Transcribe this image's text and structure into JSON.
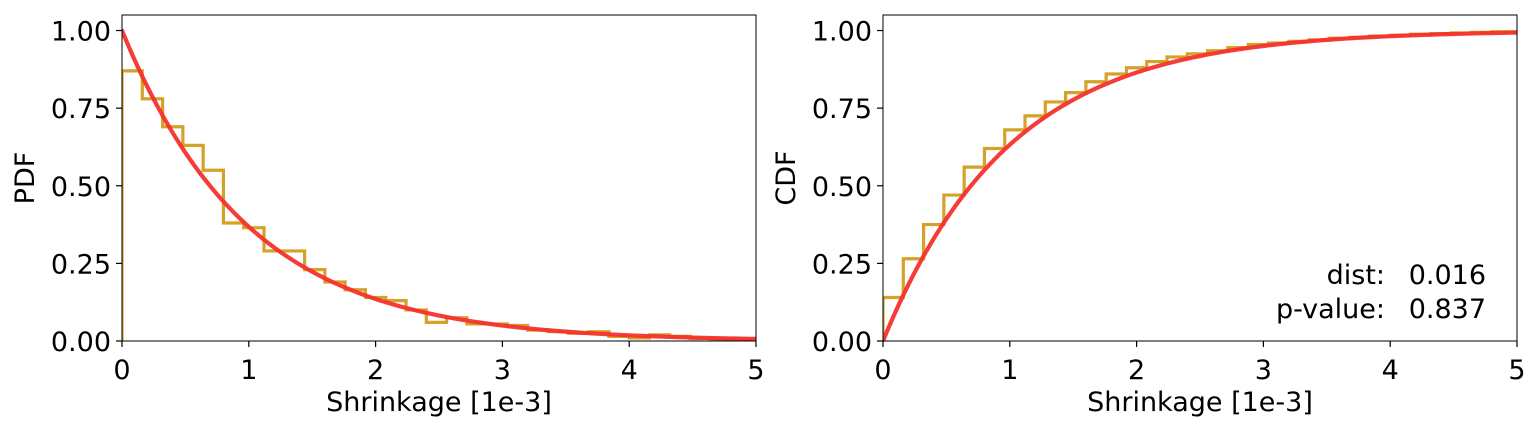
{
  "chart_data": [
    {
      "type": "line",
      "xlabel": "Shrinkage [1e-3]",
      "ylabel": "PDF",
      "xlim": [
        0,
        5
      ],
      "ylim": [
        0,
        1.05
      ],
      "xticks": [
        "0",
        "1",
        "2",
        "3",
        "4",
        "5"
      ],
      "yticks": [
        "0.00",
        "0.25",
        "0.50",
        "0.75",
        "1.00"
      ],
      "grid": false,
      "series": [
        {
          "kind": "step-histogram",
          "color": "#D4A227",
          "bin_edges": [
            0,
            0.16,
            0.32,
            0.48,
            0.64,
            0.8,
            0.96,
            1.12,
            1.28,
            1.44,
            1.6,
            1.76,
            1.92,
            2.08,
            2.24,
            2.4,
            2.56,
            2.72,
            2.88,
            3.04,
            3.2,
            3.36,
            3.52,
            3.68,
            3.84,
            4.0,
            4.16,
            4.32,
            4.48,
            4.64,
            4.8,
            5.0
          ],
          "values": [
            0.87,
            0.78,
            0.69,
            0.63,
            0.55,
            0.38,
            0.365,
            0.29,
            0.29,
            0.23,
            0.19,
            0.165,
            0.14,
            0.13,
            0.1,
            0.06,
            0.075,
            0.055,
            0.055,
            0.05,
            0.035,
            0.03,
            0.025,
            0.03,
            0.015,
            0.01,
            0.02,
            0.015,
            0.008,
            0.006,
            0.004
          ]
        },
        {
          "kind": "curve",
          "color": "#F5312D",
          "function": "exponential-pdf",
          "rate": 1.0,
          "x": [
            0,
            0.25,
            0.5,
            0.75,
            1,
            1.5,
            2,
            2.5,
            3,
            3.5,
            4,
            4.5,
            5
          ],
          "y": [
            1.0,
            0.779,
            0.607,
            0.472,
            0.368,
            0.223,
            0.135,
            0.082,
            0.05,
            0.03,
            0.018,
            0.011,
            0.007
          ]
        }
      ]
    },
    {
      "type": "line",
      "xlabel": "Shrinkage [1e-3]",
      "ylabel": "CDF",
      "xlim": [
        0,
        5
      ],
      "ylim": [
        0,
        1.05
      ],
      "xticks": [
        "0",
        "1",
        "2",
        "3",
        "4",
        "5"
      ],
      "yticks": [
        "0.00",
        "0.25",
        "0.50",
        "0.75",
        "1.00"
      ],
      "grid": false,
      "annotations": [
        {
          "label": "dist:",
          "value": "0.016"
        },
        {
          "label": "p-value:",
          "value": "0.837"
        }
      ],
      "annotation_placement": "bottom-right",
      "series": [
        {
          "kind": "step-histogram",
          "color": "#D4A227",
          "bin_edges": [
            0,
            0.16,
            0.32,
            0.48,
            0.64,
            0.8,
            0.96,
            1.12,
            1.28,
            1.44,
            1.6,
            1.76,
            1.92,
            2.08,
            2.24,
            2.4,
            2.56,
            2.72,
            2.88,
            3.04,
            3.2,
            3.36,
            3.52,
            3.68,
            3.84,
            4.0,
            4.16,
            4.32,
            4.48,
            4.64,
            4.8,
            5.0
          ],
          "values": [
            0.14,
            0.265,
            0.375,
            0.47,
            0.56,
            0.62,
            0.68,
            0.725,
            0.77,
            0.8,
            0.835,
            0.86,
            0.88,
            0.9,
            0.915,
            0.925,
            0.935,
            0.945,
            0.955,
            0.96,
            0.965,
            0.97,
            0.975,
            0.978,
            0.982,
            0.985,
            0.988,
            0.99,
            0.992,
            0.994,
            0.996
          ]
        },
        {
          "kind": "curve",
          "color": "#F5312D",
          "function": "exponential-cdf",
          "rate": 1.0,
          "x": [
            0,
            0.25,
            0.5,
            0.75,
            1,
            1.5,
            2,
            2.5,
            3,
            3.5,
            4,
            4.5,
            5
          ],
          "y": [
            0,
            0.221,
            0.393,
            0.528,
            0.632,
            0.777,
            0.865,
            0.918,
            0.95,
            0.97,
            0.982,
            0.989,
            0.993
          ]
        }
      ]
    }
  ]
}
